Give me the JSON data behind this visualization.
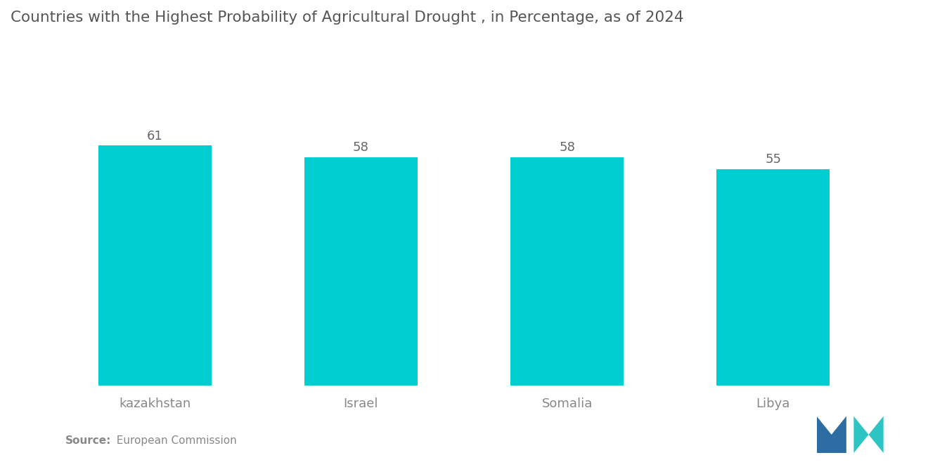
{
  "title": "Countries with the Highest Probability of Agricultural Drought , in Percentage, as of 2024",
  "categories": [
    "kazakhstan",
    "Israel",
    "Somalia",
    "Libya"
  ],
  "values": [
    61,
    58,
    58,
    55
  ],
  "bar_color": "#00CED1",
  "label_color": "#888888",
  "title_color": "#555555",
  "value_color": "#666666",
  "source_bold": "Source:",
  "source_normal": "  European Commission",
  "background_color": "#ffffff",
  "ylim": [
    0,
    85
  ],
  "bar_width": 0.55,
  "title_fontsize": 15.5,
  "axis_label_fontsize": 13,
  "value_fontsize": 13,
  "logo_blue": "#2E6DA4",
  "logo_teal": "#2EC4C4"
}
